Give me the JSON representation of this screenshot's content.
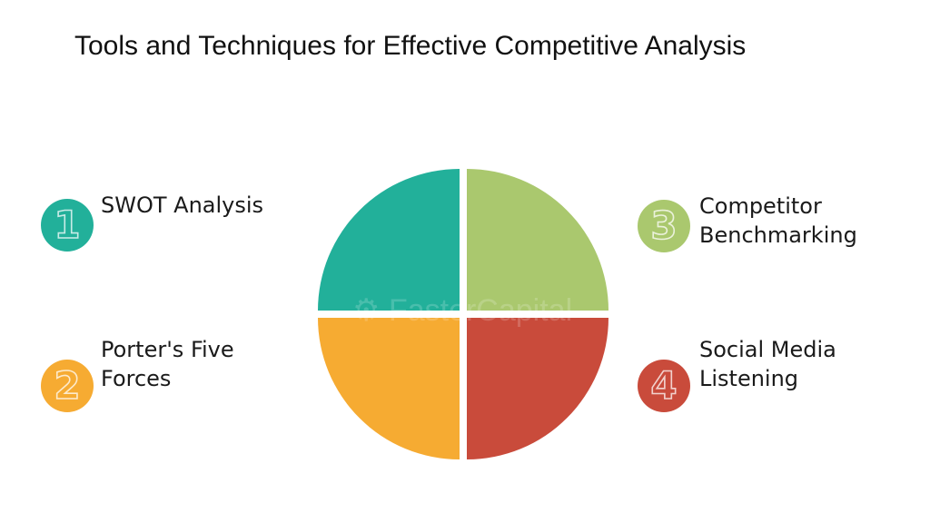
{
  "title": "Tools and Techniques for Effective Competitive Analysis",
  "watermark": "FasterCapital",
  "items": [
    {
      "number": "1",
      "line1": "SWOT Analysis",
      "line2": "",
      "color": "#22b09a"
    },
    {
      "number": "2",
      "line1": "Porter's Five",
      "line2": "Forces",
      "color": "#f6ab32"
    },
    {
      "number": "3",
      "line1": "Competitor",
      "line2": "Benchmarking",
      "color": "#aac86e"
    },
    {
      "number": "4",
      "line1": "Social Media",
      "line2": "Listening",
      "color": "#c94b3b"
    }
  ],
  "pie_colors": {
    "top_left": "#22b09a",
    "top_right": "#aac86e",
    "bottom_left": "#f6ab32",
    "bottom_right": "#c94b3b"
  }
}
